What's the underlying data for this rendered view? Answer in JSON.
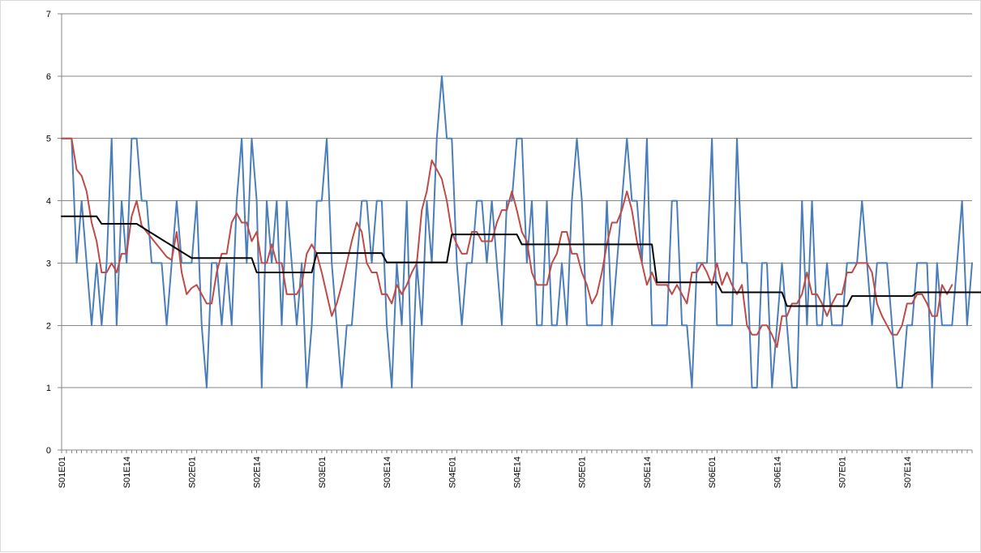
{
  "chart_data": {
    "type": "line",
    "title": "",
    "xlabel": "",
    "ylabel": "",
    "ylim": [
      0,
      7
    ],
    "yticks": [
      0,
      1,
      2,
      3,
      4,
      5,
      6,
      7
    ],
    "grid": "horizontal",
    "legend": "none",
    "x_ticks": [
      "S01E01",
      "S01E14",
      "S02E01",
      "S02E14",
      "S03E01",
      "S03E14",
      "S04E01",
      "S04E14",
      "S05E01",
      "S05E14",
      "S06E01",
      "S06E14",
      "S07E01",
      "S07E14"
    ],
    "x_tick_index": [
      0,
      13,
      26,
      39,
      52,
      65,
      78,
      91,
      104,
      117,
      130,
      143,
      156,
      169
    ],
    "n_points": 183,
    "series": [
      {
        "color": "#4a7ebb",
        "values": [
          5,
          5,
          5,
          3,
          4,
          3,
          2,
          3,
          2,
          3,
          5,
          2,
          4,
          3,
          5,
          5,
          4,
          4,
          3,
          3,
          3,
          2,
          3,
          4,
          3,
          3,
          3,
          4,
          2,
          1,
          3,
          3,
          2,
          3,
          2,
          4,
          5,
          3,
          5,
          4,
          1,
          4,
          3,
          4,
          2,
          4,
          3,
          2,
          3,
          1,
          2,
          4,
          4,
          5,
          3,
          2,
          1,
          2,
          2,
          3,
          4,
          4,
          3,
          4,
          4,
          2,
          1,
          3,
          2,
          4,
          1,
          3,
          2,
          4,
          3,
          5,
          6,
          5,
          5,
          3,
          2,
          3,
          3,
          4,
          4,
          3,
          4,
          3,
          2,
          4,
          4,
          5,
          5,
          3,
          4,
          2,
          2,
          4,
          2,
          2,
          3,
          2,
          4,
          5,
          4,
          2,
          2,
          2,
          2,
          4,
          2,
          3,
          4,
          5,
          4,
          4,
          3,
          5,
          2,
          2,
          2,
          2,
          4,
          4,
          2,
          2,
          1,
          3,
          3,
          3,
          5,
          2,
          2,
          2,
          2,
          5,
          3,
          3,
          1,
          1,
          3,
          3,
          1,
          2,
          3,
          2,
          1,
          1,
          4,
          2,
          4,
          2,
          2,
          3,
          2,
          2,
          2,
          3,
          3,
          3,
          4,
          3,
          2,
          3,
          3,
          3,
          2,
          1,
          1,
          2,
          2,
          3,
          3,
          3,
          1,
          3,
          2,
          2,
          2,
          3,
          4,
          2,
          3
        ]
      },
      {
        "color": "#be4b48",
        "values": [
          5,
          5,
          5,
          4.5,
          4.4,
          4.15,
          3.65,
          3.35,
          2.85,
          2.85,
          3,
          2.85,
          3.15,
          3.15,
          3.75,
          4,
          3.6,
          3.5,
          3.4,
          3.3,
          3.2,
          3.1,
          3.05,
          3.5,
          2.85,
          2.5,
          2.6,
          2.65,
          2.5,
          2.35,
          2.35,
          2.85,
          3.15,
          3.15,
          3.65,
          3.8,
          3.65,
          3.65,
          3.35,
          3.5,
          3,
          3,
          3.3,
          3,
          3,
          2.5,
          2.5,
          2.5,
          2.65,
          3.15,
          3.3,
          3.15,
          2.85,
          2.5,
          2.15,
          2.35,
          2.65,
          3,
          3.35,
          3.65,
          3.5,
          3,
          2.85,
          2.85,
          2.5,
          2.5,
          2.35,
          2.65,
          2.5,
          2.65,
          2.85,
          3,
          3.85,
          4.15,
          4.65,
          4.5,
          4.35,
          4,
          3.5,
          3.3,
          3.15,
          3.15,
          3.5,
          3.5,
          3.35,
          3.35,
          3.35,
          3.65,
          3.85,
          3.85,
          4.15,
          3.85,
          3.5,
          3.35,
          2.85,
          2.65,
          2.65,
          2.65,
          3,
          3.15,
          3.5,
          3.5,
          3.15,
          3.15,
          2.85,
          2.65,
          2.35,
          2.5,
          2.85,
          3.3,
          3.65,
          3.65,
          3.85,
          4.15,
          3.85,
          3.35,
          3,
          2.65,
          2.85,
          2.65,
          2.65,
          2.65,
          2.5,
          2.65,
          2.5,
          2.35,
          2.85,
          2.85,
          3,
          2.85,
          2.65,
          3,
          2.65,
          2.85,
          2.65,
          2.5,
          2.65,
          2,
          1.85,
          1.85,
          2,
          2,
          1.85,
          1.65,
          2.15,
          2.15,
          2.35,
          2.35,
          2.5,
          2.85,
          2.5,
          2.5,
          2.35,
          2.15,
          2.35,
          2.5,
          2.5,
          2.85,
          2.85,
          3,
          3,
          3,
          2.85,
          2.35,
          2.15,
          2,
          1.85,
          1.85,
          2,
          2.35,
          2.35,
          2.5,
          2.5,
          2.35,
          2.15,
          2.15,
          2.65,
          2.5,
          2.65
        ]
      },
      {
        "color": "#000000",
        "values": [
          3.75,
          3.75,
          3.75,
          3.75,
          3.75,
          3.75,
          3.75,
          3.75,
          3.63,
          3.63,
          3.63,
          3.63,
          3.63,
          3.63,
          3.63,
          3.63,
          3.58,
          3.53,
          3.48,
          3.43,
          3.38,
          3.33,
          3.28,
          3.23,
          3.18,
          3.13,
          3.08,
          3.08,
          3.08,
          3.08,
          3.08,
          3.08,
          3.08,
          3.08,
          3.08,
          3.08,
          3.08,
          3.08,
          3.08,
          2.85,
          2.85,
          2.85,
          2.85,
          2.85,
          2.85,
          2.85,
          2.85,
          2.85,
          2.85,
          2.85,
          2.85,
          3.16,
          3.16,
          3.16,
          3.16,
          3.16,
          3.16,
          3.16,
          3.16,
          3.16,
          3.16,
          3.16,
          3.16,
          3.16,
          3.16,
          3.01,
          3.01,
          3.01,
          3.01,
          3.01,
          3.01,
          3.01,
          3.01,
          3.01,
          3.01,
          3.01,
          3.01,
          3.01,
          3.46,
          3.46,
          3.46,
          3.46,
          3.46,
          3.46,
          3.46,
          3.46,
          3.46,
          3.46,
          3.46,
          3.46,
          3.46,
          3.46,
          3.3,
          3.3,
          3.3,
          3.3,
          3.3,
          3.3,
          3.3,
          3.3,
          3.3,
          3.3,
          3.3,
          3.3,
          3.3,
          3.3,
          3.3,
          3.3,
          3.3,
          3.3,
          3.3,
          3.3,
          3.3,
          3.3,
          3.3,
          3.3,
          3.3,
          3.3,
          3.3,
          2.69,
          2.69,
          2.69,
          2.69,
          2.69,
          2.69,
          2.69,
          2.69,
          2.69,
          2.69,
          2.69,
          2.69,
          2.69,
          2.53,
          2.53,
          2.53,
          2.53,
          2.53,
          2.53,
          2.53,
          2.53,
          2.53,
          2.53,
          2.53,
          2.53,
          2.53,
          2.31,
          2.31,
          2.31,
          2.31,
          2.31,
          2.31,
          2.31,
          2.31,
          2.31,
          2.31,
          2.31,
          2.31,
          2.31,
          2.47,
          2.47,
          2.47,
          2.47,
          2.47,
          2.47,
          2.47,
          2.47,
          2.47,
          2.47,
          2.47,
          2.47,
          2.47,
          2.53,
          2.53,
          2.53,
          2.53,
          2.53,
          2.53,
          2.53,
          2.53,
          2.53,
          2.53,
          2.53,
          2.53,
          2.53,
          2.53
        ]
      }
    ]
  }
}
